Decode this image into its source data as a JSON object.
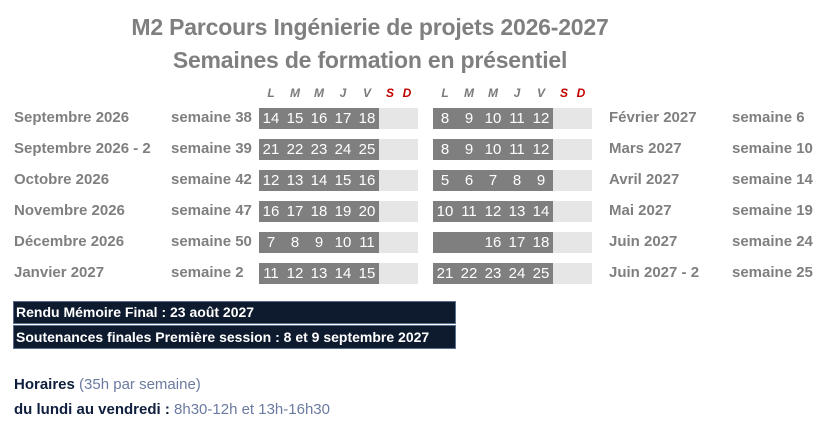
{
  "title": "M2 Parcours Ingénierie de projets 2026-2027",
  "subtitle": "Semaines de formation en présentiel",
  "day_headers": [
    "L",
    "M",
    "M",
    "J",
    "V",
    "S",
    "D"
  ],
  "left_rows": [
    {
      "month": "Septembre 2026",
      "week": "semaine 38",
      "days": [
        "14",
        "15",
        "16",
        "17",
        "18"
      ]
    },
    {
      "month": "Septembre 2026 - 2",
      "week": "semaine 39",
      "days": [
        "21",
        "22",
        "23",
        "24",
        "25"
      ]
    },
    {
      "month": "Octobre 2026",
      "week": "semaine 42",
      "days": [
        "12",
        "13",
        "14",
        "15",
        "16"
      ]
    },
    {
      "month": "Novembre 2026",
      "week": "semaine 47",
      "days": [
        "16",
        "17",
        "18",
        "19",
        "20"
      ]
    },
    {
      "month": "Décembre 2026",
      "week": "semaine 50",
      "days": [
        "7",
        "8",
        "9",
        "10",
        "11"
      ]
    },
    {
      "month": "Janvier 2027",
      "week": "semaine 2",
      "days": [
        "11",
        "12",
        "13",
        "14",
        "15"
      ]
    }
  ],
  "right_rows": [
    {
      "month": "Février 2027",
      "week": "semaine 6",
      "days": [
        "8",
        "9",
        "10",
        "11",
        "12"
      ]
    },
    {
      "month": "Mars 2027",
      "week": "semaine 10",
      "days": [
        "8",
        "9",
        "10",
        "11",
        "12"
      ]
    },
    {
      "month": "Avril 2027",
      "week": "semaine 14",
      "days": [
        "5",
        "6",
        "7",
        "8",
        "9"
      ]
    },
    {
      "month": "Mai 2027",
      "week": "semaine 19",
      "days": [
        "10",
        "11",
        "12",
        "13",
        "14"
      ]
    },
    {
      "month": "Juin 2027",
      "week": "semaine 24",
      "days": [
        "",
        "",
        "16",
        "17",
        "18"
      ]
    },
    {
      "month": "Juin 2027 - 2",
      "week": "semaine 25",
      "days": [
        "21",
        "22",
        "23",
        "24",
        "25"
      ]
    }
  ],
  "info_box": {
    "line1": "Rendu Mémoire Final : 23 août 2027",
    "line2": "Soutenances finales Première session : 8 et 9 septembre 2027"
  },
  "hours": {
    "label": "Horaires",
    "note": "(35h par semaine)",
    "days_label": "du lundi au vendredi :",
    "times": "8h30-12h et 13h-16h30"
  },
  "colors": {
    "day_cell": "#7f7f7f",
    "weekend_cell": "#e6e6e6",
    "weekend_header": "#c00000",
    "box_bg": "#0e1b2e"
  }
}
